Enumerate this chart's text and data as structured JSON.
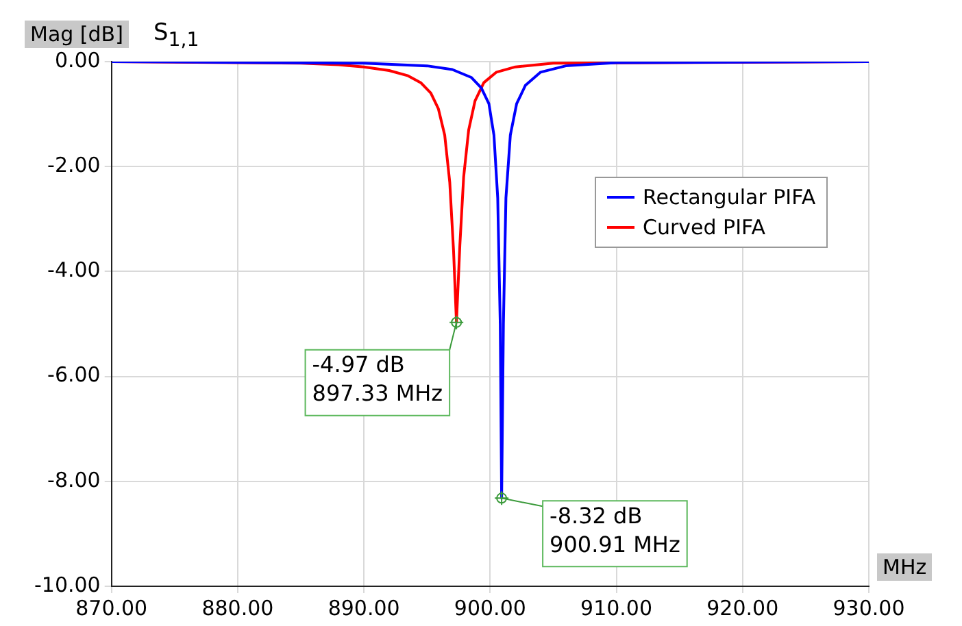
{
  "chart_data": {
    "type": "line",
    "title": "S$_{1,1}$",
    "ylabel": "Mag [dB]",
    "xlabel": "MHz",
    "xlim": [
      870,
      930
    ],
    "xticks": [
      {
        "value": 870,
        "label": "870.00"
      },
      {
        "value": 880,
        "label": "880.00"
      },
      {
        "value": 890,
        "label": "890.00"
      },
      {
        "value": 900,
        "label": "900.00"
      },
      {
        "value": 910,
        "label": "910.00"
      },
      {
        "value": 920,
        "label": "920.00"
      },
      {
        "value": 930,
        "label": "930.00"
      }
    ],
    "ylim": [
      -10,
      0
    ],
    "yticks": [
      {
        "value": -10,
        "label": "-10.00"
      },
      {
        "value": -8,
        "label": "-8.00"
      },
      {
        "value": -6,
        "label": "-6.00"
      },
      {
        "value": -4,
        "label": "-4.00"
      },
      {
        "value": -2,
        "label": "-2.00"
      },
      {
        "value": 0,
        "label": "0.00"
      }
    ],
    "grid": true,
    "legend": "right",
    "marker": "none",
    "line_style": "solid",
    "series": [
      {
        "name": "Rectangular PIFA",
        "color": "#0000ff",
        "x": [
          870,
          890,
          895,
          897,
          898.5,
          899.3,
          899.9,
          900.3,
          900.6,
          900.8,
          900.91,
          901.05,
          901.25,
          901.6,
          902.1,
          902.8,
          904,
          906,
          910,
          930
        ],
        "values": [
          0,
          -0.03,
          -0.08,
          -0.15,
          -0.3,
          -0.5,
          -0.8,
          -1.4,
          -2.6,
          -5,
          -8.32,
          -5,
          -2.6,
          -1.4,
          -0.8,
          -0.45,
          -0.2,
          -0.08,
          -0.02,
          0
        ]
      },
      {
        "name": "Curved PIFA",
        "color": "#ff0000",
        "x": [
          870,
          885,
          888,
          890,
          892,
          893.5,
          894.5,
          895.3,
          895.9,
          896.4,
          896.8,
          897.1,
          897.33,
          897.6,
          897.9,
          898.3,
          898.8,
          899.5,
          900.5,
          902,
          905,
          930
        ],
        "values": [
          0,
          -0.03,
          -0.06,
          -0.1,
          -0.17,
          -0.27,
          -0.4,
          -0.6,
          -0.9,
          -1.4,
          -2.3,
          -3.6,
          -4.97,
          -3.5,
          -2.2,
          -1.3,
          -0.75,
          -0.4,
          -0.2,
          -0.1,
          -0.03,
          0
        ]
      }
    ],
    "annotations": [
      {
        "text": "-4.97 dB\n897.33 MHz",
        "x": 897.33,
        "y": -4.97
      },
      {
        "text": "-8.32 dB\n900.91 MHz",
        "x": 900.91,
        "y": -8.32
      }
    ]
  }
}
